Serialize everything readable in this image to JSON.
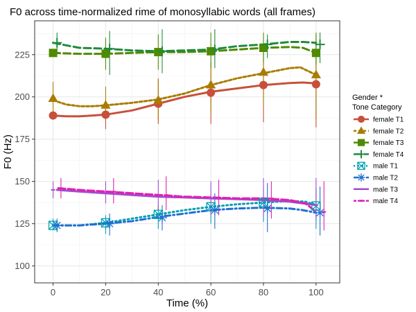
{
  "chart_data": {
    "type": "line",
    "title": "F0 across time-normalized rime of monosyllabic words (all frames)",
    "xlabel": "Time (%)",
    "ylabel": "F0 (Hz)",
    "xlim": [
      -7,
      109
    ],
    "ylim": [
      90,
      245
    ],
    "x_ticks": [
      0,
      20,
      40,
      60,
      80,
      100
    ],
    "y_ticks": [
      100,
      125,
      150,
      175,
      200,
      225
    ],
    "grid": true,
    "legend": {
      "position": "right",
      "title_lines": [
        "Gender *",
        "Tone Category"
      ]
    },
    "point_x": [
      0,
      20,
      40,
      60,
      80,
      100
    ],
    "series": [
      {
        "name": "female T1",
        "color": "#C8503A",
        "marker": "circle",
        "dash": "",
        "offset": 0,
        "smooth": [
          [
            0,
            189
          ],
          [
            5,
            188.5
          ],
          [
            10,
            188.5
          ],
          [
            15,
            189
          ],
          [
            20,
            189.5
          ],
          [
            30,
            192
          ],
          [
            40,
            196
          ],
          [
            50,
            200
          ],
          [
            60,
            203
          ],
          [
            70,
            205
          ],
          [
            80,
            207
          ],
          [
            90,
            208.2
          ],
          [
            95,
            208.5
          ],
          [
            100,
            208
          ]
        ],
        "points": [
          189,
          189.5,
          196,
          202.5,
          207,
          207.5
        ],
        "err_low": [
          null,
          181,
          184,
          184,
          185,
          182
        ],
        "err_high": [
          null,
          198,
          210,
          221,
          230,
          232
        ]
      },
      {
        "name": "female T2",
        "color": "#A97C00",
        "marker": "triangle",
        "dash": "4 3",
        "offset": 0,
        "smooth": [
          [
            0,
            198
          ],
          [
            5,
            195.5
          ],
          [
            10,
            194.5
          ],
          [
            15,
            194.5
          ],
          [
            20,
            195
          ],
          [
            30,
            196.5
          ],
          [
            40,
            198.5
          ],
          [
            50,
            202
          ],
          [
            60,
            207
          ],
          [
            70,
            211
          ],
          [
            80,
            214
          ],
          [
            90,
            217
          ],
          [
            94,
            217.5
          ],
          [
            100,
            213
          ]
        ],
        "points": [
          199,
          195,
          198,
          207,
          214.5,
          213
        ],
        "err_low": [
          190,
          186,
          186,
          190,
          195,
          187
        ],
        "err_high": [
          209,
          206,
          211,
          220,
          231,
          236
        ]
      },
      {
        "name": "female T3",
        "color": "#4F8A00",
        "marker": "square",
        "dash": "10 5",
        "offset": 0,
        "smooth": [
          [
            0,
            226
          ],
          [
            10,
            225.5
          ],
          [
            20,
            225.5
          ],
          [
            30,
            226
          ],
          [
            40,
            226.5
          ],
          [
            50,
            226.5
          ],
          [
            60,
            227
          ],
          [
            70,
            228
          ],
          [
            80,
            229
          ],
          [
            90,
            229.5
          ],
          [
            95,
            229
          ],
          [
            100,
            226
          ]
        ],
        "points": [
          226,
          225.5,
          226.5,
          227,
          229,
          226
        ],
        "err_low": [
          null,
          216,
          216,
          217,
          220,
          219
        ],
        "err_high": [
          null,
          235,
          237,
          238,
          238,
          238
        ]
      },
      {
        "name": "female T4",
        "color": "#1F8A3C",
        "marker": "plus",
        "dash": "10 5",
        "offset": 1.5,
        "smooth": [
          [
            0,
            232
          ],
          [
            10,
            229
          ],
          [
            20,
            228.5
          ],
          [
            30,
            227.5
          ],
          [
            40,
            227
          ],
          [
            50,
            227.5
          ],
          [
            60,
            228
          ],
          [
            70,
            230
          ],
          [
            80,
            231
          ],
          [
            90,
            232.5
          ],
          [
            95,
            232.5
          ],
          [
            100,
            232
          ]
        ],
        "points": [
          232,
          228.5,
          227,
          228,
          231,
          231
        ],
        "err_low": [
          226,
          213,
          214,
          217,
          223,
          220
        ],
        "err_high": [
          238,
          239,
          240,
          240,
          237,
          238
        ]
      },
      {
        "name": "male T1",
        "color": "#00A0B0",
        "marker": "squarex",
        "dash": "2 4",
        "offset": 0,
        "smooth": [
          [
            0,
            124
          ],
          [
            5,
            124
          ],
          [
            10,
            124
          ],
          [
            20,
            125.5
          ],
          [
            30,
            128
          ],
          [
            40,
            130.5
          ],
          [
            50,
            133
          ],
          [
            60,
            135
          ],
          [
            70,
            136.5
          ],
          [
            80,
            137.5
          ],
          [
            90,
            138.5
          ],
          [
            96,
            138
          ],
          [
            100,
            136
          ]
        ],
        "points": [
          124,
          125.5,
          130.5,
          135,
          137.5,
          135.5
        ],
        "err_low": [
          121,
          119,
          122,
          125,
          126,
          122
        ],
        "err_high": [
          128,
          130,
          136,
          142,
          147,
          146
        ]
      },
      {
        "name": "male T2",
        "color": "#1F6FD0",
        "marker": "asterisk",
        "dash": "8 4 2 4",
        "offset": 1.5,
        "smooth": [
          [
            0,
            124
          ],
          [
            5,
            124
          ],
          [
            10,
            124
          ],
          [
            20,
            125
          ],
          [
            30,
            126.5
          ],
          [
            40,
            129
          ],
          [
            50,
            131
          ],
          [
            60,
            133
          ],
          [
            70,
            134
          ],
          [
            80,
            134.5
          ],
          [
            90,
            134
          ],
          [
            95,
            133
          ],
          [
            100,
            131.5
          ]
        ],
        "points": [
          124,
          125,
          128.5,
          133,
          134,
          131.5
        ],
        "err_low": [
          120,
          118,
          121,
          122,
          120,
          118
        ],
        "err_high": [
          128,
          131,
          136,
          143,
          149,
          147
        ]
      },
      {
        "name": "male T3",
        "color": "#A24BD0",
        "marker": "line",
        "dash": "",
        "offset": 0,
        "smooth": [
          [
            1.5,
            145
          ],
          [
            10,
            144
          ],
          [
            20,
            143
          ],
          [
            30,
            142
          ],
          [
            40,
            141
          ],
          [
            50,
            140.5
          ],
          [
            60,
            140
          ],
          [
            70,
            139.5
          ],
          [
            80,
            139
          ],
          [
            90,
            138
          ],
          [
            100,
            136
          ]
        ],
        "points": [
          145,
          143,
          141,
          140,
          139,
          136
        ],
        "err_low": [
          140,
          137,
          133,
          130,
          129,
          127
        ],
        "err_high": [
          150,
          150,
          151,
          150,
          152,
          152
        ]
      },
      {
        "name": "male T4",
        "color": "#E020B0",
        "marker": "dotline",
        "dash": "10 4",
        "offset": 3,
        "smooth": [
          [
            2,
            146
          ],
          [
            10,
            145
          ],
          [
            20,
            144
          ],
          [
            30,
            143
          ],
          [
            40,
            142
          ],
          [
            50,
            141
          ],
          [
            60,
            140.5
          ],
          [
            70,
            140
          ],
          [
            80,
            140
          ],
          [
            90,
            139
          ],
          [
            96,
            137
          ],
          [
            100,
            132
          ]
        ],
        "points": [
          146,
          144,
          142,
          140.5,
          140,
          132
        ],
        "err_low": [
          140,
          137,
          133,
          130,
          128,
          121
        ],
        "err_high": [
          152,
          152,
          153,
          151,
          150,
          150
        ]
      }
    ]
  }
}
